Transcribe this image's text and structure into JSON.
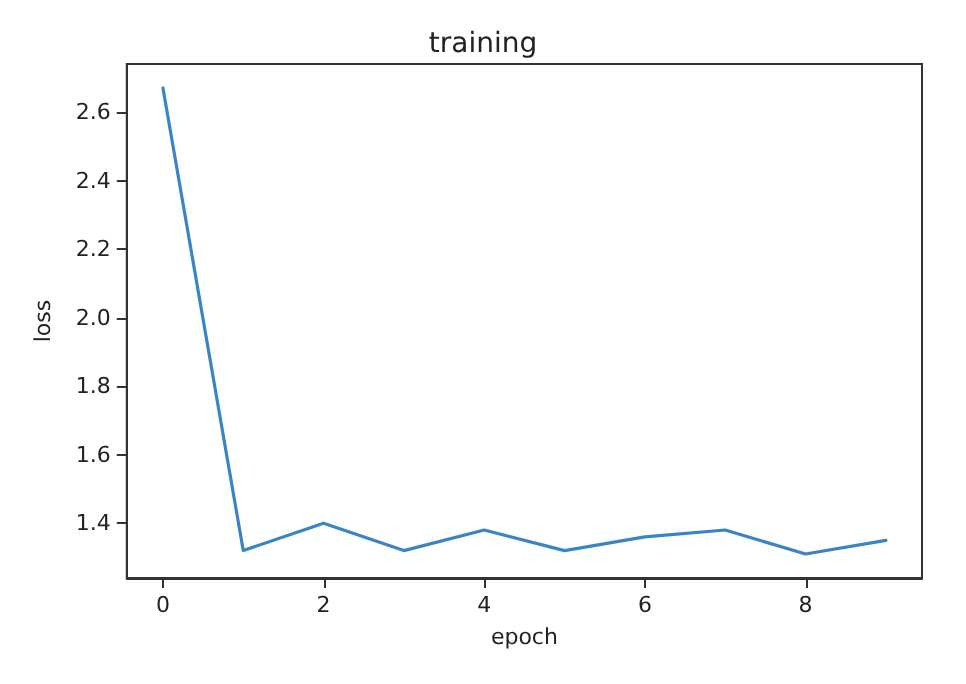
{
  "chart_data": {
    "type": "line",
    "title": "training",
    "xlabel": "epoch",
    "ylabel": "loss",
    "x": [
      0,
      1,
      2,
      3,
      4,
      5,
      6,
      7,
      8,
      9
    ],
    "values": [
      2.67,
      1.32,
      1.4,
      1.32,
      1.38,
      1.32,
      1.36,
      1.38,
      1.31,
      1.35
    ],
    "color": "#3b84c4",
    "xlim": [
      -0.45,
      9.45
    ],
    "xticks": [
      0,
      2,
      4,
      6,
      8
    ],
    "ylim": [
      1.24,
      2.74
    ],
    "yticks": [
      1.4,
      1.6,
      1.8,
      {
        "value": 2,
        "label": "2.0"
      },
      2.2,
      2.4,
      2.6
    ],
    "grid": false,
    "marker": "none",
    "line_style": "solid"
  }
}
